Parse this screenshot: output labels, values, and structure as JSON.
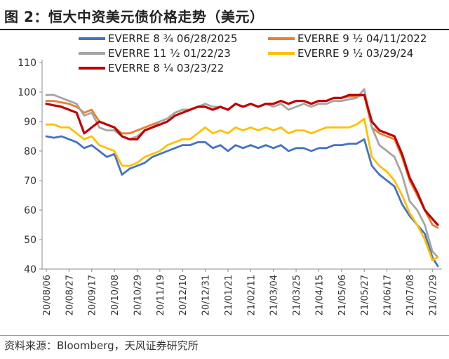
{
  "page": {
    "title": "图 2：恒大中资美元债价格走势（美元）",
    "source": "资料来源：Bloomberg，天风证券研究所"
  },
  "chart_data": {
    "type": "line",
    "title": "",
    "xlabel": "",
    "ylabel": "",
    "ylim": [
      40,
      110
    ],
    "yticks": [
      40,
      50,
      60,
      70,
      80,
      90,
      100,
      110
    ],
    "xticks": [
      "20/08/06",
      "20/08/27",
      "20/09/17",
      "20/10/08",
      "20/10/29",
      "20/11/19",
      "20/12/10",
      "20/12/31",
      "21/01/21",
      "21/02/11",
      "21/03/04",
      "21/03/25",
      "21/04/15",
      "21/05/06",
      "21/05/27",
      "21/06/17",
      "21/07/08",
      "21/07/29"
    ],
    "grid": false,
    "legend_position": "top",
    "x": [
      "2020-08-06",
      "2020-08-13",
      "2020-08-20",
      "2020-08-27",
      "2020-09-03",
      "2020-09-10",
      "2020-09-17",
      "2020-09-24",
      "2020-10-01",
      "2020-10-08",
      "2020-10-15",
      "2020-10-22",
      "2020-10-29",
      "2020-11-05",
      "2020-11-12",
      "2020-11-19",
      "2020-11-26",
      "2020-12-03",
      "2020-12-10",
      "2020-12-17",
      "2020-12-24",
      "2020-12-31",
      "2021-01-07",
      "2021-01-14",
      "2021-01-21",
      "2021-01-28",
      "2021-02-04",
      "2021-02-11",
      "2021-02-18",
      "2021-02-25",
      "2021-03-04",
      "2021-03-11",
      "2021-03-18",
      "2021-03-25",
      "2021-04-01",
      "2021-04-08",
      "2021-04-15",
      "2021-04-22",
      "2021-04-29",
      "2021-05-06",
      "2021-05-13",
      "2021-05-20",
      "2021-05-27",
      "2021-06-03",
      "2021-06-10",
      "2021-06-17",
      "2021-06-24",
      "2021-07-01",
      "2021-07-08",
      "2021-07-15",
      "2021-07-22",
      "2021-07-29",
      "2021-08-03"
    ],
    "series": [
      {
        "name": "EVERRE 8 ¾ 06/28/2025",
        "color": "#4472C4",
        "values": [
          85,
          84.5,
          85,
          84,
          83,
          81,
          82,
          80,
          78,
          79,
          72,
          74,
          75,
          76,
          78,
          79,
          80,
          81,
          82,
          82,
          83,
          83,
          81,
          82,
          80,
          82,
          81,
          82,
          81,
          82,
          81,
          82,
          80,
          81,
          81,
          80,
          81,
          81,
          82,
          82,
          82.5,
          82.5,
          84,
          75,
          72,
          70,
          68,
          62,
          58,
          55,
          52,
          44,
          41
        ]
      },
      {
        "name": "EVERRE 9 ½ 04/11/2022",
        "color": "#ED7D31",
        "values": [
          97,
          97,
          96.5,
          96,
          95,
          93,
          94,
          90,
          89,
          88,
          86,
          86,
          87,
          88,
          89,
          90,
          91,
          93,
          94,
          94,
          95,
          95,
          94,
          95,
          94,
          96,
          95,
          96,
          95,
          96,
          96,
          97,
          96,
          97,
          97,
          96,
          97,
          97,
          98,
          98,
          98.5,
          98.5,
          99,
          88,
          86,
          85,
          84,
          78,
          70,
          65,
          60,
          55,
          54
        ]
      },
      {
        "name": "EVERRE 11 ½ 01/22/23",
        "color": "#A5A5A5",
        "values": [
          99,
          99,
          98,
          97,
          96,
          92,
          93,
          88,
          87,
          87,
          85,
          84,
          85,
          87,
          88,
          90,
          91,
          93,
          94,
          94,
          95,
          96,
          95,
          95,
          94,
          96,
          95,
          96,
          95,
          96,
          95,
          96,
          94,
          95,
          96,
          95,
          96,
          96,
          97,
          97,
          97.5,
          98,
          101,
          88,
          82,
          80,
          78,
          72,
          63,
          60,
          55,
          46,
          44
        ]
      },
      {
        "name": "EVERRE 9 ½ 03/29/24",
        "color": "#FFC000",
        "values": [
          89,
          89,
          88,
          88,
          86,
          84,
          85,
          82,
          81,
          80,
          75,
          75,
          76,
          78,
          79,
          80,
          82,
          83,
          84,
          84,
          86,
          88,
          86,
          87,
          86,
          88,
          87,
          88,
          87,
          88,
          87,
          88,
          86,
          87,
          87,
          86,
          87,
          88,
          88,
          88,
          88,
          89,
          91,
          78,
          75,
          73,
          70,
          65,
          59,
          55,
          50,
          43,
          44
        ]
      },
      {
        "name": "EVERRE 8 ¼ 03/23/22",
        "color": "#C00000",
        "values": [
          96,
          95.5,
          95,
          94,
          93,
          86,
          88,
          90,
          89,
          88,
          85,
          84,
          84,
          87,
          88,
          89,
          90,
          92,
          93,
          94,
          95,
          95,
          94,
          95,
          94,
          96,
          95,
          96,
          95,
          96,
          96,
          97,
          96,
          97,
          97,
          96,
          97,
          97,
          98,
          98,
          99,
          99,
          99,
          90,
          87,
          86,
          85,
          79,
          71,
          66,
          60,
          57,
          55
        ]
      }
    ]
  }
}
